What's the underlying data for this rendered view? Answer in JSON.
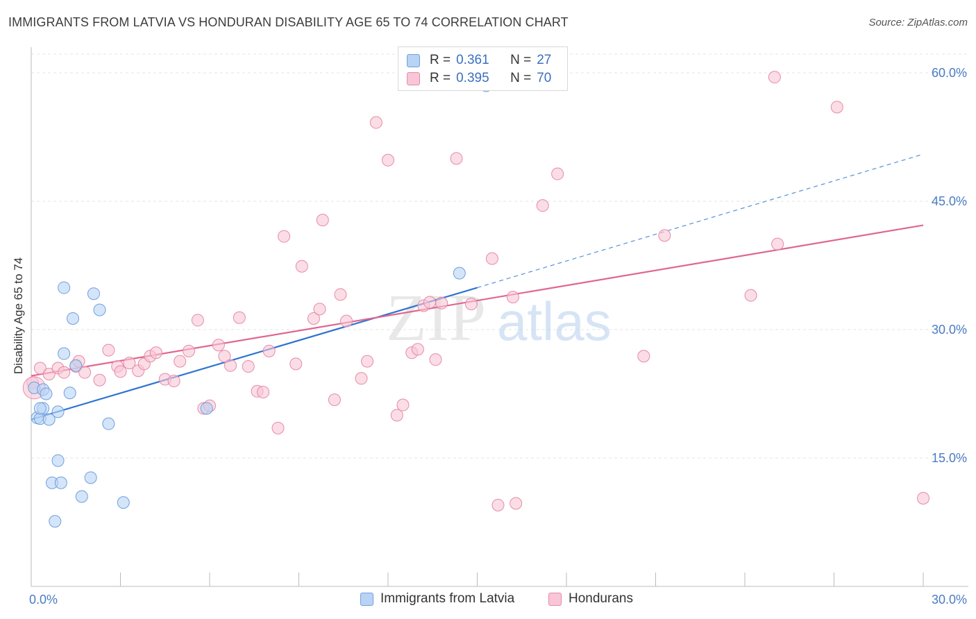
{
  "title": "IMMIGRANTS FROM LATVIA VS HONDURAN DISABILITY AGE 65 TO 74 CORRELATION CHART",
  "source": "Source: ZipAtlas.com",
  "watermark": {
    "zip": "ZIP",
    "atlas": "atlas"
  },
  "legend": {
    "rows": [
      {
        "r_label": "R =",
        "r_value": "0.361",
        "n_label": "N =",
        "n_value": "27"
      },
      {
        "r_label": "R =",
        "r_value": "0.395",
        "n_label": "N =",
        "n_value": "70"
      }
    ]
  },
  "colors": {
    "blue_fill": "#b9d3f5",
    "blue_stroke": "#6f9fdc",
    "blue_line": "#2d74d0",
    "pink_fill": "#f8c6d6",
    "pink_stroke": "#e58aa8",
    "pink_line": "#e0668f",
    "tick_text": "#4a7bc4"
  },
  "chart_data": {
    "type": "scatter",
    "title": "IMMIGRANTS FROM LATVIA VS HONDURAN DISABILITY AGE 65 TO 74 CORRELATION CHART",
    "xlabel": "",
    "ylabel": "Disability Age 65 to 74",
    "xlim": [
      0,
      30
    ],
    "ylim": [
      0,
      63
    ],
    "x_tick_labels": [
      "0.0%",
      "30.0%"
    ],
    "y_ticks": [
      15,
      30,
      45,
      60
    ],
    "y_tick_labels": [
      "15.0%",
      "30.0%",
      "45.0%",
      "60.0%"
    ],
    "grid": true,
    "legend_position": "top-center",
    "series": [
      {
        "name": "Immigrants from Latvia",
        "color": "#6f9fdc",
        "points": [
          [
            0.1,
            23.2
          ],
          [
            0.2,
            19.7
          ],
          [
            0.3,
            19.6
          ],
          [
            0.4,
            20.8
          ],
          [
            0.4,
            23.0
          ],
          [
            0.5,
            22.5
          ],
          [
            0.6,
            19.5
          ],
          [
            0.7,
            12.1
          ],
          [
            0.8,
            7.6
          ],
          [
            0.9,
            14.7
          ],
          [
            0.9,
            20.4
          ],
          [
            1.0,
            12.1
          ],
          [
            1.1,
            27.2
          ],
          [
            1.1,
            34.9
          ],
          [
            1.3,
            22.6
          ],
          [
            1.4,
            31.3
          ],
          [
            1.5,
            25.8
          ],
          [
            1.7,
            10.5
          ],
          [
            2.0,
            12.7
          ],
          [
            2.1,
            34.2
          ],
          [
            2.3,
            32.3
          ],
          [
            2.6,
            19.0
          ],
          [
            3.1,
            9.8
          ],
          [
            5.9,
            20.8
          ],
          [
            14.4,
            36.6
          ],
          [
            15.3,
            58.5
          ],
          [
            0.3,
            20.8
          ]
        ],
        "trend": {
          "x": [
            0,
            15.0
          ],
          "y": [
            19.5,
            34.9
          ],
          "dashed_extension_to": [
            30,
            50.5
          ]
        }
      },
      {
        "name": "Hondurans",
        "color": "#e58aa8",
        "points": [
          [
            0.05,
            23.8
          ],
          [
            0.3,
            25.5
          ],
          [
            0.6,
            24.8
          ],
          [
            0.9,
            25.5
          ],
          [
            1.1,
            25.0
          ],
          [
            1.5,
            25.7
          ],
          [
            1.6,
            26.3
          ],
          [
            1.8,
            25.0
          ],
          [
            2.3,
            24.1
          ],
          [
            2.6,
            27.6
          ],
          [
            2.9,
            25.7
          ],
          [
            3.0,
            25.1
          ],
          [
            3.3,
            26.1
          ],
          [
            3.6,
            25.2
          ],
          [
            3.8,
            26.0
          ],
          [
            4.0,
            26.9
          ],
          [
            4.2,
            27.3
          ],
          [
            4.5,
            24.2
          ],
          [
            4.8,
            24.0
          ],
          [
            5.0,
            26.3
          ],
          [
            5.3,
            27.5
          ],
          [
            5.6,
            31.1
          ],
          [
            5.8,
            20.8
          ],
          [
            6.0,
            21.1
          ],
          [
            6.3,
            28.2
          ],
          [
            6.5,
            26.9
          ],
          [
            6.7,
            25.8
          ],
          [
            7.0,
            31.4
          ],
          [
            7.3,
            25.7
          ],
          [
            7.6,
            22.8
          ],
          [
            7.8,
            22.7
          ],
          [
            8.0,
            27.5
          ],
          [
            8.3,
            18.5
          ],
          [
            8.5,
            40.9
          ],
          [
            8.9,
            26.0
          ],
          [
            9.1,
            37.4
          ],
          [
            9.5,
            31.3
          ],
          [
            9.7,
            32.4
          ],
          [
            9.8,
            42.8
          ],
          [
            10.2,
            21.8
          ],
          [
            10.4,
            34.1
          ],
          [
            10.6,
            31.0
          ],
          [
            11.1,
            24.3
          ],
          [
            11.3,
            26.3
          ],
          [
            11.6,
            54.2
          ],
          [
            12.0,
            49.8
          ],
          [
            12.3,
            20.0
          ],
          [
            12.5,
            21.2
          ],
          [
            12.8,
            27.3
          ],
          [
            13.0,
            27.7
          ],
          [
            13.2,
            32.8
          ],
          [
            13.4,
            33.2
          ],
          [
            13.6,
            26.5
          ],
          [
            13.8,
            33.1
          ],
          [
            14.3,
            50.0
          ],
          [
            14.8,
            33.0
          ],
          [
            15.5,
            38.3
          ],
          [
            15.7,
            9.5
          ],
          [
            16.2,
            33.8
          ],
          [
            16.3,
            9.7
          ],
          [
            17.2,
            44.5
          ],
          [
            17.7,
            48.2
          ],
          [
            20.6,
            26.9
          ],
          [
            21.3,
            41.0
          ],
          [
            24.2,
            34.0
          ],
          [
            25.0,
            59.5
          ],
          [
            25.1,
            40.0
          ],
          [
            27.1,
            56.0
          ],
          [
            30.0,
            10.3
          ],
          [
            0.1,
            23.2
          ]
        ],
        "trend": {
          "x": [
            0,
            30
          ],
          "y": [
            24.6,
            42.2
          ]
        }
      }
    ]
  },
  "bottom_legend": [
    {
      "label": "Immigrants from Latvia"
    },
    {
      "label": "Hondurans"
    }
  ]
}
